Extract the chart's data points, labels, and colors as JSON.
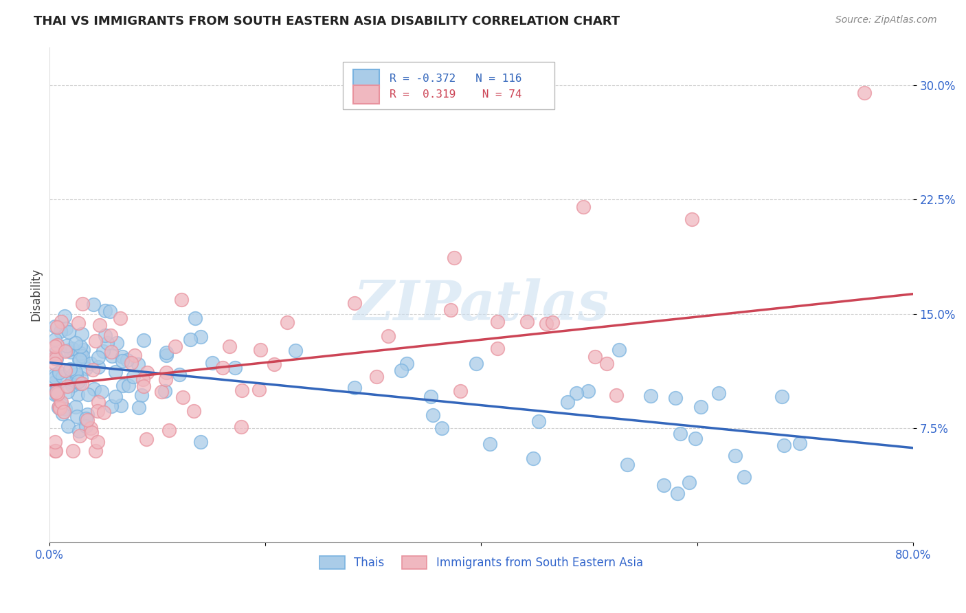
{
  "title": "THAI VS IMMIGRANTS FROM SOUTH EASTERN ASIA DISABILITY CORRELATION CHART",
  "source": "Source: ZipAtlas.com",
  "ylabel": "Disability",
  "x_min": 0.0,
  "x_max": 0.8,
  "y_min": 0.0,
  "y_max": 0.325,
  "x_ticks": [
    0.0,
    0.2,
    0.4,
    0.6,
    0.8
  ],
  "x_tick_labels": [
    "0.0%",
    "",
    "",
    "",
    "80.0%"
  ],
  "y_ticks": [
    0.075,
    0.15,
    0.225,
    0.3
  ],
  "y_tick_labels": [
    "7.5%",
    "15.0%",
    "22.5%",
    "30.0%"
  ],
  "blue_color": "#7ab3e0",
  "blue_face_color": "#aacce8",
  "pink_color": "#e8929e",
  "pink_face_color": "#f0b8c0",
  "blue_line_color": "#3366bb",
  "pink_line_color": "#cc4455",
  "legend_R_blue": "-0.372",
  "legend_N_blue": "116",
  "legend_R_pink": "0.319",
  "legend_N_pink": "74",
  "blue_label": "Thais",
  "pink_label": "Immigrants from South Eastern Asia",
  "watermark": "ZIPatlas",
  "blue_line_x": [
    0.0,
    0.8
  ],
  "blue_line_y": [
    0.118,
    0.062
  ],
  "pink_line_x": [
    0.0,
    0.8
  ],
  "pink_line_y": [
    0.103,
    0.163
  ],
  "grid_color": "#cccccc",
  "title_color": "#222222",
  "source_color": "#888888",
  "tick_color": "#3366cc",
  "ylabel_color": "#444444"
}
